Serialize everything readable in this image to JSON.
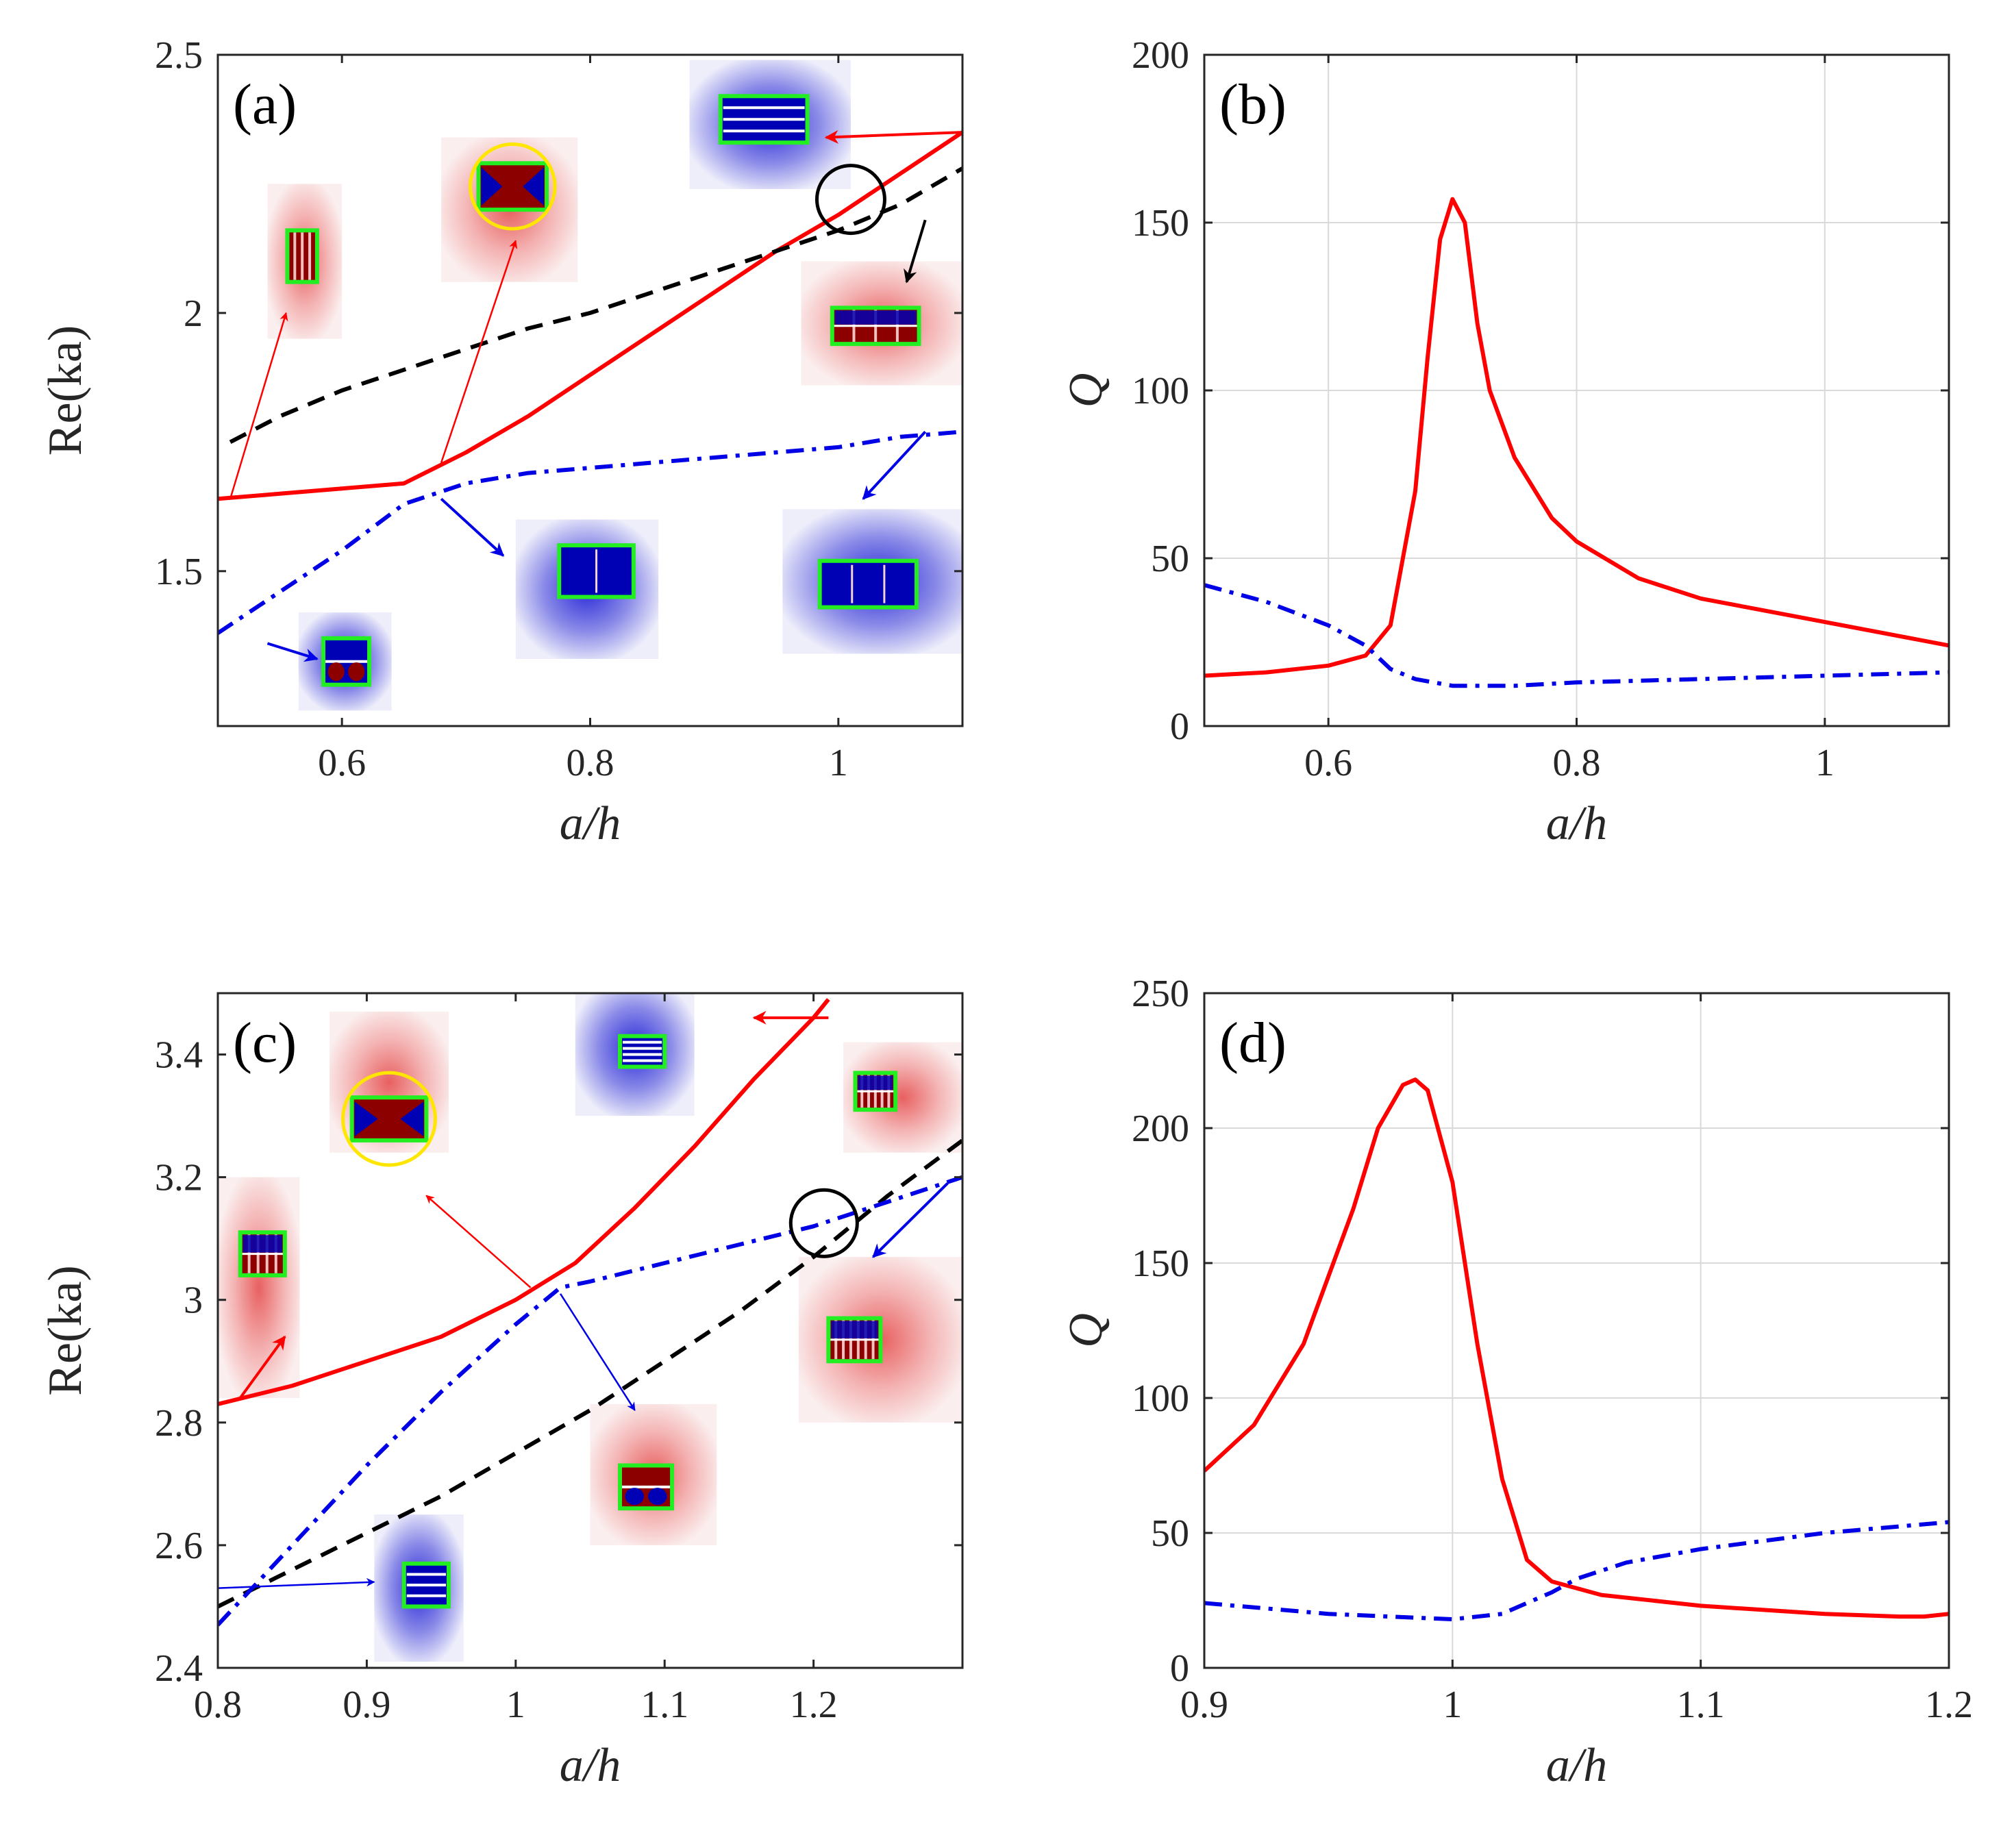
{
  "colors": {
    "red": "#ff0000",
    "blue": "#0000e6",
    "black": "#000000",
    "green_box": "#22ee22",
    "yellow_circle": "#ffe600",
    "field_red": "#8c0000",
    "field_blue": "#0000b4"
  },
  "chart_data": [
    {
      "id": "a",
      "type": "line",
      "panel_label": "(a)",
      "xlabel": "a/h",
      "ylabel": "Re(ka)",
      "xlim": [
        0.5,
        1.1
      ],
      "ylim": [
        1.2,
        2.5
      ],
      "xticks": [
        0.6,
        0.8,
        1
      ],
      "xtick_labels": [
        "0.6",
        "0.8",
        "1"
      ],
      "yticks": [
        1.5,
        2,
        2.5
      ],
      "ytick_labels": [
        "1.5",
        "2",
        "2.5"
      ],
      "grid": false,
      "series": [
        {
          "style": "solid",
          "color": "red",
          "x": [
            0.5,
            0.55,
            0.6,
            0.65,
            0.7,
            0.75,
            0.8,
            0.85,
            0.9,
            0.95,
            1.0,
            1.05,
            1.1
          ],
          "y": [
            1.64,
            1.65,
            1.66,
            1.67,
            1.73,
            1.8,
            1.88,
            1.96,
            2.04,
            2.12,
            2.19,
            2.27,
            2.35
          ]
        },
        {
          "style": "dashed",
          "color": "black",
          "x": [
            0.51,
            0.55,
            0.6,
            0.65,
            0.7,
            0.75,
            0.8,
            0.85,
            0.9,
            0.95,
            1.0,
            1.05,
            1.1
          ],
          "y": [
            1.75,
            1.8,
            1.85,
            1.89,
            1.93,
            1.97,
            2.0,
            2.04,
            2.08,
            2.12,
            2.16,
            2.21,
            2.28
          ]
        },
        {
          "style": "dashdot",
          "color": "blue",
          "x": [
            0.5,
            0.55,
            0.6,
            0.65,
            0.7,
            0.75,
            0.8,
            0.85,
            0.9,
            0.95,
            1.0,
            1.05,
            1.1
          ],
          "y": [
            1.38,
            1.46,
            1.54,
            1.63,
            1.67,
            1.69,
            1.7,
            1.71,
            1.72,
            1.73,
            1.74,
            1.76,
            1.77
          ]
        }
      ],
      "annotations": [
        {
          "shape": "circle",
          "color": "black",
          "x": 1.01,
          "y": 2.22,
          "rx": 0.028,
          "ry": 0.064
        },
        {
          "shape": "arrow",
          "color": "red",
          "x0": 0.51,
          "y0": 1.64,
          "x1": 0.555,
          "y1": 2.0,
          "heavy": false
        },
        {
          "shape": "arrow",
          "color": "red",
          "x0": 0.68,
          "y0": 1.71,
          "x1": 0.74,
          "y1": 2.14,
          "heavy": false
        },
        {
          "shape": "arrow",
          "color": "red",
          "x0": 1.1,
          "y0": 2.35,
          "x1": 0.99,
          "y1": 2.34,
          "heavy": true
        },
        {
          "shape": "arrow",
          "color": "black",
          "x0": 1.07,
          "y0": 2.18,
          "x1": 1.055,
          "y1": 2.06,
          "heavy": true
        },
        {
          "shape": "arrow",
          "color": "blue",
          "x0": 0.68,
          "y0": 1.64,
          "x1": 0.73,
          "y1": 1.53,
          "heavy": true
        },
        {
          "shape": "arrow",
          "color": "blue",
          "x0": 1.07,
          "y0": 1.77,
          "x1": 1.02,
          "y1": 1.64,
          "heavy": true
        },
        {
          "shape": "arrow",
          "color": "blue",
          "x0": 0.54,
          "y0": 1.36,
          "x1": 0.58,
          "y1": 1.33,
          "heavy": true
        }
      ],
      "insets": [
        {
          "x0": 0.54,
          "x1": 0.6,
          "y0": 1.95,
          "y1": 2.25,
          "rect": [
            0.556,
            0.58,
            2.06,
            2.16
          ],
          "bg": "red",
          "pattern": "stripes",
          "n": 3,
          "circle": false
        },
        {
          "x0": 0.68,
          "x1": 0.79,
          "y0": 2.06,
          "y1": 2.34,
          "rect": [
            0.71,
            0.765,
            2.2,
            2.29
          ],
          "bg": "red",
          "pattern": "bowtie",
          "n": 2,
          "circle": true
        },
        {
          "x0": 0.88,
          "x1": 1.01,
          "y0": 2.24,
          "y1": 2.49,
          "rect": [
            0.905,
            0.975,
            2.33,
            2.42
          ],
          "bg": "blue",
          "pattern": "hbands",
          "n": 3,
          "circle": false
        },
        {
          "x0": 0.97,
          "x1": 1.1,
          "y0": 1.86,
          "y1": 2.1,
          "rect": [
            0.995,
            1.065,
            1.94,
            2.01
          ],
          "bg": "red",
          "pattern": "grid",
          "n": 3,
          "circle": false
        },
        {
          "x0": 0.74,
          "x1": 0.855,
          "y0": 1.33,
          "y1": 1.6,
          "rect": [
            0.775,
            0.835,
            1.45,
            1.55
          ],
          "bg": "blue",
          "pattern": "blob",
          "n": 1,
          "circle": false
        },
        {
          "x0": 0.955,
          "x1": 1.11,
          "y0": 1.34,
          "y1": 1.62,
          "rect": [
            0.985,
            1.063,
            1.43,
            1.52
          ],
          "bg": "blue",
          "pattern": "blob",
          "n": 2,
          "circle": false
        },
        {
          "x0": 0.565,
          "x1": 0.64,
          "y0": 1.23,
          "y1": 1.42,
          "rect": [
            0.585,
            0.622,
            1.28,
            1.37
          ],
          "bg": "blue",
          "pattern": "cross",
          "n": 1,
          "circle": false
        }
      ]
    },
    {
      "id": "b",
      "type": "line",
      "panel_label": "(b)",
      "xlabel": "a/h",
      "ylabel": "Q",
      "xlim": [
        0.5,
        1.1
      ],
      "ylim": [
        0,
        200
      ],
      "xticks": [
        0.6,
        0.8,
        1
      ],
      "xtick_labels": [
        "0.6",
        "0.8",
        "1"
      ],
      "yticks": [
        0,
        50,
        100,
        150,
        200
      ],
      "ytick_labels": [
        "0",
        "50",
        "100",
        "150",
        "200"
      ],
      "grid": true,
      "series": [
        {
          "style": "solid",
          "color": "red",
          "x": [
            0.5,
            0.55,
            0.6,
            0.63,
            0.65,
            0.67,
            0.68,
            0.69,
            0.7,
            0.71,
            0.72,
            0.73,
            0.75,
            0.78,
            0.8,
            0.85,
            0.9,
            1.0,
            1.1
          ],
          "y": [
            15,
            16,
            18,
            21,
            30,
            70,
            110,
            145,
            157,
            150,
            120,
            100,
            80,
            62,
            55,
            44,
            38,
            31,
            24
          ]
        },
        {
          "style": "dashdot",
          "color": "blue",
          "x": [
            0.5,
            0.55,
            0.6,
            0.63,
            0.65,
            0.67,
            0.7,
            0.75,
            0.8,
            0.9,
            1.0,
            1.1
          ],
          "y": [
            42,
            37,
            30,
            24,
            17,
            14,
            12,
            12,
            13,
            14,
            15,
            16
          ]
        }
      ]
    },
    {
      "id": "c",
      "type": "line",
      "panel_label": "(c)",
      "xlabel": "a/h",
      "ylabel": "Re(ka)",
      "xlim": [
        0.8,
        1.3
      ],
      "ylim": [
        2.4,
        3.5
      ],
      "xticks": [
        0.8,
        0.9,
        1,
        1.1,
        1.2
      ],
      "xtick_labels": [
        "0.8",
        "0.9",
        "1",
        "1.1",
        "1.2"
      ],
      "yticks": [
        2.4,
        2.6,
        2.8,
        3,
        3.2,
        3.4
      ],
      "ytick_labels": [
        "2.4",
        "2.6",
        "2.8",
        "3",
        "3.2",
        "3.4"
      ],
      "grid": false,
      "series": [
        {
          "style": "solid",
          "color": "red",
          "x": [
            0.8,
            0.85,
            0.9,
            0.95,
            1.0,
            1.04,
            1.08,
            1.12,
            1.16,
            1.2,
            1.21
          ],
          "y": [
            2.83,
            2.86,
            2.9,
            2.94,
            3.0,
            3.06,
            3.15,
            3.25,
            3.36,
            3.46,
            3.49
          ]
        },
        {
          "style": "dashed",
          "color": "black",
          "x": [
            0.8,
            0.85,
            0.9,
            0.95,
            1.0,
            1.05,
            1.1,
            1.15,
            1.2,
            1.25,
            1.3
          ],
          "y": [
            2.5,
            2.56,
            2.62,
            2.68,
            2.75,
            2.82,
            2.9,
            2.98,
            3.07,
            3.17,
            3.26
          ]
        },
        {
          "style": "dashdot",
          "color": "blue",
          "x": [
            0.8,
            0.85,
            0.9,
            0.95,
            1.0,
            1.02,
            1.03,
            1.05,
            1.1,
            1.15,
            1.2,
            1.25,
            1.3
          ],
          "y": [
            2.47,
            2.6,
            2.73,
            2.85,
            2.96,
            3.0,
            3.02,
            3.03,
            3.06,
            3.09,
            3.12,
            3.16,
            3.2
          ]
        }
      ],
      "annotations": [
        {
          "shape": "circle",
          "color": "black",
          "x": 1.207,
          "y": 3.125,
          "rx": 0.022,
          "ry": 0.055
        },
        {
          "shape": "arrow",
          "color": "red",
          "x0": 0.815,
          "y0": 2.84,
          "x1": 0.845,
          "y1": 2.94,
          "heavy": true
        },
        {
          "shape": "arrow",
          "color": "red",
          "x0": 1.01,
          "y0": 3.02,
          "x1": 0.94,
          "y1": 3.17,
          "heavy": false
        },
        {
          "shape": "arrow",
          "color": "red",
          "x0": 1.21,
          "y0": 3.46,
          "x1": 1.16,
          "y1": 3.46,
          "heavy": true
        },
        {
          "shape": "arrow",
          "color": "blue",
          "x0": 1.03,
          "y0": 3.01,
          "x1": 1.08,
          "y1": 2.82,
          "heavy": false
        },
        {
          "shape": "arrow",
          "color": "blue",
          "x0": 1.29,
          "y0": 3.19,
          "x1": 1.24,
          "y1": 3.07,
          "heavy": true
        },
        {
          "shape": "arrow",
          "color": "blue",
          "x0": 0.8,
          "y0": 2.53,
          "x1": 0.905,
          "y1": 2.54,
          "heavy": false
        }
      ],
      "insets": [
        {
          "x0": 0.8,
          "x1": 0.855,
          "y0": 2.84,
          "y1": 3.2,
          "rect": [
            0.815,
            0.845,
            3.04,
            3.11
          ],
          "bg": "red",
          "pattern": "grid",
          "n": 4,
          "circle": false
        },
        {
          "x0": 0.875,
          "x1": 0.955,
          "y0": 3.24,
          "y1": 3.47,
          "rect": [
            0.89,
            0.94,
            3.26,
            3.33
          ],
          "bg": "red",
          "pattern": "bowtie",
          "n": 3,
          "circle": true
        },
        {
          "x0": 1.04,
          "x1": 1.12,
          "y0": 3.3,
          "y1": 3.52,
          "rect": [
            1.07,
            1.1,
            3.38,
            3.43
          ],
          "bg": "blue",
          "pattern": "hbands",
          "n": 4,
          "circle": false
        },
        {
          "x0": 1.22,
          "x1": 1.3,
          "y0": 3.24,
          "y1": 3.42,
          "rect": [
            1.228,
            1.255,
            3.31,
            3.37
          ],
          "bg": "red",
          "pattern": "grid",
          "n": 5,
          "circle": false
        },
        {
          "x0": 1.19,
          "x1": 1.3,
          "y0": 2.8,
          "y1": 3.07,
          "rect": [
            1.21,
            1.245,
            2.9,
            2.97
          ],
          "bg": "red",
          "pattern": "grid",
          "n": 6,
          "circle": false
        },
        {
          "x0": 1.05,
          "x1": 1.135,
          "y0": 2.6,
          "y1": 2.83,
          "rect": [
            1.07,
            1.105,
            2.66,
            2.73
          ],
          "bg": "red",
          "pattern": "cross",
          "n": 2,
          "circle": false
        },
        {
          "x0": 0.905,
          "x1": 0.965,
          "y0": 2.41,
          "y1": 2.65,
          "rect": [
            0.925,
            0.955,
            2.5,
            2.57
          ],
          "bg": "blue",
          "pattern": "hbands",
          "n": 3,
          "circle": false
        }
      ]
    },
    {
      "id": "d",
      "type": "line",
      "panel_label": "(d)",
      "xlabel": "a/h",
      "ylabel": "Q",
      "xlim": [
        0.9,
        1.2
      ],
      "ylim": [
        0,
        250
      ],
      "xticks": [
        0.9,
        1,
        1.1,
        1.2
      ],
      "xtick_labels": [
        "0.9",
        "1",
        "1.1",
        "1.2"
      ],
      "yticks": [
        0,
        50,
        100,
        150,
        200,
        250
      ],
      "ytick_labels": [
        "0",
        "50",
        "100",
        "150",
        "200",
        "250"
      ],
      "grid": true,
      "series": [
        {
          "style": "solid",
          "color": "red",
          "x": [
            0.9,
            0.92,
            0.94,
            0.96,
            0.97,
            0.98,
            0.985,
            0.99,
            1.0,
            1.01,
            1.02,
            1.03,
            1.04,
            1.06,
            1.1,
            1.15,
            1.18,
            1.19,
            1.2
          ],
          "y": [
            73,
            90,
            120,
            170,
            200,
            216,
            218,
            214,
            180,
            120,
            70,
            40,
            32,
            27,
            23,
            20,
            19,
            19,
            20
          ]
        },
        {
          "style": "dashdot",
          "color": "blue",
          "x": [
            0.9,
            0.95,
            1.0,
            1.02,
            1.03,
            1.04,
            1.05,
            1.07,
            1.1,
            1.15,
            1.2
          ],
          "y": [
            24,
            20,
            18,
            20,
            24,
            28,
            33,
            39,
            44,
            50,
            54
          ]
        }
      ]
    }
  ]
}
